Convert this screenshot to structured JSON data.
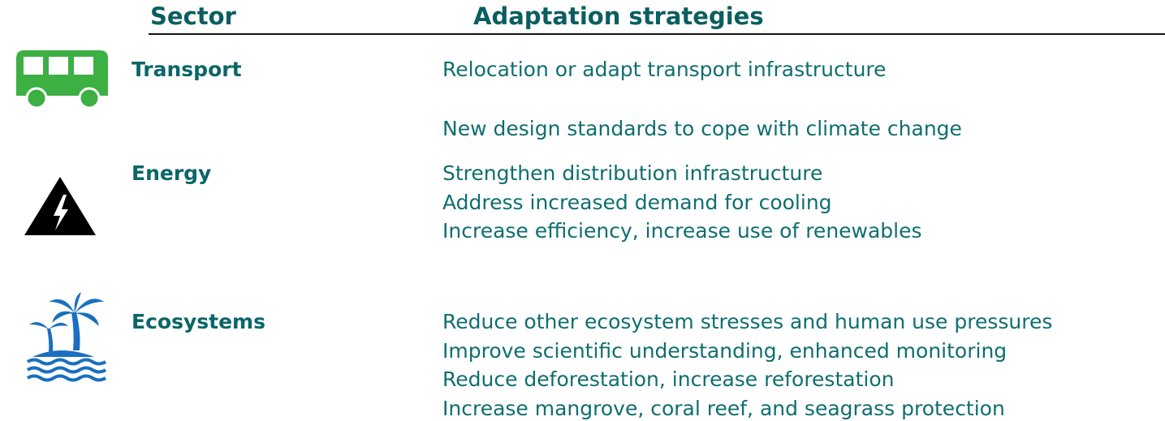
{
  "header": {
    "sector": "Sector",
    "strategies": "Adaptation strategies"
  },
  "rows": [
    {
      "sector": "Transport",
      "strategies": [
        "Relocation or adapt transport infrastructure",
        "New design standards to cope with climate change"
      ]
    },
    {
      "sector": "Energy",
      "strategies": [
        "Strengthen distribution infrastructure",
        "Address increased demand for cooling",
        "Increase efficiency, increase use of renewables"
      ]
    },
    {
      "sector": "Ecosystems",
      "strategies": [
        "Reduce other ecosystem stresses and human use pressures",
        "Improve scientific understanding, enhanced monitoring",
        "Reduce deforestation, increase reforestation",
        "Increase mangrove, coral reef, and seagrass protection"
      ]
    }
  ]
}
